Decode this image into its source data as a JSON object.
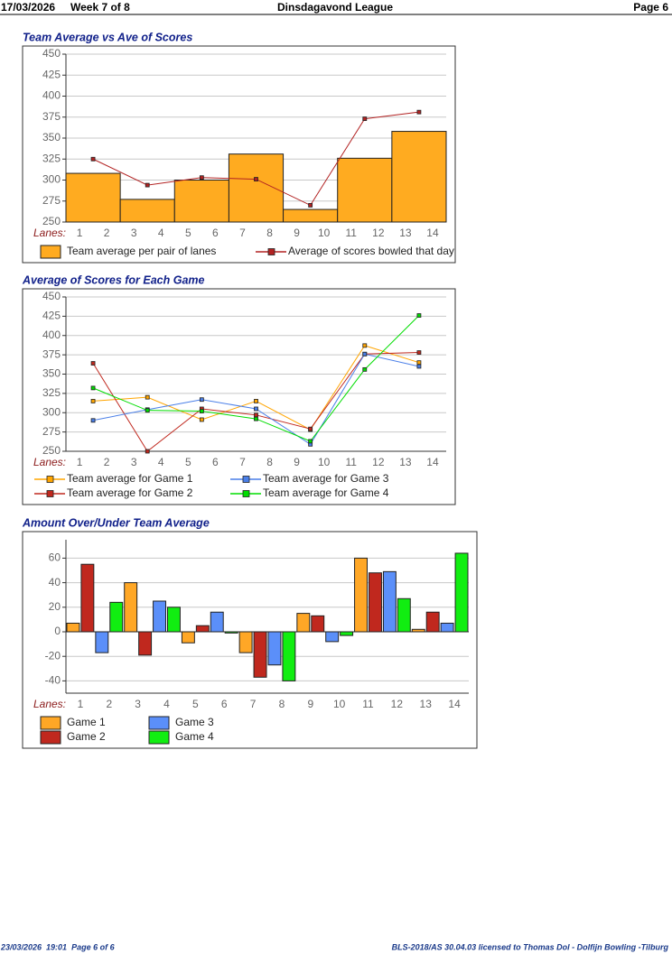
{
  "header": {
    "date": "17/03/2026",
    "week": "Week 7 of 8",
    "league": "Dinsdagavond League",
    "page": "Page 6"
  },
  "footer": {
    "printed": "23/03/2026  19:01  Page 6 of 6",
    "license": "BLS-2018/AS 30.04.03 licensed to Thomas Dol - Dolfijn Bowling -Tilburg"
  },
  "chart_data": [
    {
      "type": "combo",
      "title": "Team Average vs Ave of Scores",
      "x_label": "Lanes:",
      "xlim": [
        0.5,
        14.5
      ],
      "xticks": [
        1,
        2,
        3,
        4,
        5,
        6,
        7,
        8,
        9,
        10,
        11,
        12,
        13,
        14
      ],
      "ylim": [
        250,
        450
      ],
      "yticks": [
        250,
        275,
        300,
        325,
        350,
        375,
        400,
        425,
        450
      ],
      "grid": true,
      "x": [
        1.5,
        3.5,
        5.5,
        7.5,
        9.5,
        11.5,
        13.5
      ],
      "series": [
        {
          "name": "Team average per pair of lanes",
          "kind": "bar",
          "color": "#ffab20",
          "values": [
            308,
            277,
            300,
            331,
            265,
            326,
            358
          ]
        },
        {
          "name": "Average of scores bowled that day",
          "kind": "line",
          "color": "#b22222",
          "values": [
            325,
            294,
            303,
            301,
            270,
            373,
            381
          ]
        }
      ]
    },
    {
      "type": "line",
      "title": "Average of Scores for Each Game",
      "x_label": "Lanes:",
      "xlim": [
        0.5,
        14.5
      ],
      "xticks": [
        1,
        2,
        3,
        4,
        5,
        6,
        7,
        8,
        9,
        10,
        11,
        12,
        13,
        14
      ],
      "ylim": [
        250,
        450
      ],
      "yticks": [
        250,
        275,
        300,
        325,
        350,
        375,
        400,
        425,
        450
      ],
      "grid": true,
      "x": [
        1.5,
        3.5,
        5.5,
        7.5,
        9.5,
        11.5,
        13.5
      ],
      "series": [
        {
          "name": "Team average for Game 1",
          "color": "#ffa500",
          "values": [
            315,
            320,
            291,
            315,
            278,
            387,
            365
          ]
        },
        {
          "name": "Team average for Game 2",
          "color": "#c0281e",
          "values": [
            364,
            250,
            305,
            297,
            279,
            376,
            378
          ]
        },
        {
          "name": "Team average for Game 3",
          "color": "#4a7fe8",
          "values": [
            290,
            304,
            317,
            305,
            259,
            376,
            360
          ]
        },
        {
          "name": "Team average for Game 4",
          "color": "#00dd00",
          "values": [
            332,
            303,
            302,
            292,
            263,
            356,
            426
          ]
        }
      ]
    },
    {
      "type": "bar",
      "title": "Amount Over/Under Team Average",
      "x_label": "Lanes:",
      "xlim": [
        0.5,
        14.5
      ],
      "xticks": [
        1,
        2,
        3,
        4,
        5,
        6,
        7,
        8,
        9,
        10,
        11,
        12,
        13,
        14
      ],
      "ylim": [
        -50,
        75
      ],
      "yticks": [
        -40,
        -20,
        0,
        20,
        40,
        60
      ],
      "grid": true,
      "x": [
        1.5,
        3.5,
        5.5,
        7.5,
        9.5,
        11.5,
        13.5
      ],
      "series": [
        {
          "name": "Game 1",
          "color": "#ffa726",
          "values": [
            7,
            40,
            -9,
            -17,
            15,
            60,
            2
          ]
        },
        {
          "name": "Game 2",
          "color": "#c0281e",
          "values": [
            55,
            -19,
            5,
            -37,
            13,
            48,
            16
          ]
        },
        {
          "name": "Game 3",
          "color": "#5b8ff9",
          "values": [
            -17,
            25,
            16,
            -27,
            -8,
            49,
            7
          ]
        },
        {
          "name": "Game 4",
          "color": "#11ee11",
          "values": [
            24,
            20,
            -1,
            -40,
            -3,
            27,
            64
          ]
        }
      ]
    }
  ]
}
